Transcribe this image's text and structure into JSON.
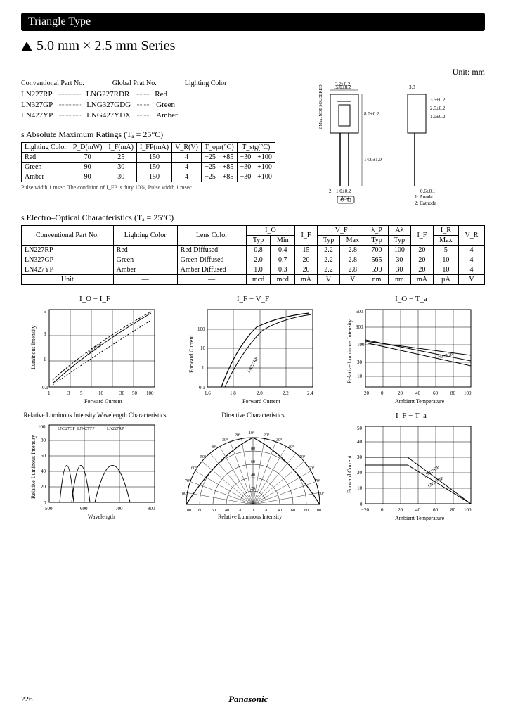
{
  "header": {
    "title": "Triangle Type"
  },
  "series_title": "5.0 mm × 2.5 mm Series",
  "unit_label": "Unit: mm",
  "part_headers": {
    "conv": "Conventional Part No.",
    "global": "Global Prat No.",
    "color": "Lighting Color"
  },
  "parts": [
    {
      "conv": "LN227RP",
      "global": "LNG227RDR",
      "color": "Red"
    },
    {
      "conv": "LN327GP",
      "global": "LNG327GDG",
      "color": "Green"
    },
    {
      "conv": "LN427YP",
      "global": "LNG427YDX",
      "color": "Amber"
    }
  ],
  "abs_max": {
    "title": "s  Absolute Maximum Ratings (Tₐ = 25°C)",
    "columns": [
      "Lighting Color",
      "P_D(mW)",
      "I_F(mA)",
      "I_FP(mA)",
      "V_R(V)",
      "T_opr(°C)",
      "T_stg(°C)"
    ],
    "subcols": [
      "",
      "",
      "",
      "",
      "",
      "",
      ""
    ],
    "rows": [
      [
        "Red",
        "70",
        "25",
        "150",
        "4",
        "−25",
        "+85",
        "−30",
        "+100"
      ],
      [
        "Green",
        "90",
        "30",
        "150",
        "4",
        "−25",
        "+85",
        "−30",
        "+100"
      ],
      [
        "Amber",
        "90",
        "30",
        "150",
        "4",
        "−25",
        "+85",
        "−30",
        "+100"
      ]
    ],
    "footnote": "Pulse width 1 msec. The condition of I_FP is duty 10%, Pulse width 1 msec"
  },
  "eo": {
    "title": "s  Electro–Optical Characteristics (Tₐ = 25°C)",
    "header1": [
      "Conventional Part No.",
      "Lighting Color",
      "Lens Color",
      "I_O",
      "",
      "V_F",
      "λ_P",
      "Aλ",
      "",
      "I_R",
      ""
    ],
    "header2": [
      "",
      "",
      "",
      "Typ",
      "Min",
      "I_F",
      "Typ",
      "Max",
      "Typ",
      "Typ",
      "I_F",
      "Max",
      "V_R"
    ],
    "rows": [
      [
        "LN227RP",
        "Red",
        "Red Diffused",
        "0.8",
        "0.4",
        "15",
        "2.2",
        "2.8",
        "700",
        "100",
        "20",
        "5",
        "4"
      ],
      [
        "LN327GP",
        "Green",
        "Green Diffused",
        "2.0",
        "0.7",
        "20",
        "2.2",
        "2.8",
        "565",
        "30",
        "20",
        "10",
        "4"
      ],
      [
        "LN427YP",
        "Amber",
        "Amber Diffused",
        "1.0",
        "0.3",
        "20",
        "2.2",
        "2.8",
        "590",
        "30",
        "20",
        "10",
        "4"
      ]
    ],
    "unit_row": [
      "Unit",
      "—",
      "—",
      "mcd",
      "mcd",
      "mA",
      "V",
      "V",
      "nm",
      "nm",
      "mA",
      "µA",
      "V"
    ]
  },
  "diagram_labels": {
    "note1": "1: Anode",
    "note2": "2: Cathode",
    "d1": "5.0±0.2",
    "d2": "3.2±0.2",
    "d3": "2.5±0.2",
    "d4": "1.0±0.2",
    "d5": "3.5±0.2",
    "d6": "8.0±0.2",
    "d7": "0.6±0.1",
    "d8": "14.0±1.0",
    "d9": "2.54",
    "d10": "2",
    "d11": "1.0±0.2",
    "d12": "3.3",
    "solder": "2 Max. NOT SOLDERED"
  },
  "charts": {
    "c1": {
      "title": "I_O − I_F",
      "xlabel": "Forward Current",
      "ylabel": "Luminous Intensity",
      "xticks": [
        "1",
        "3",
        "5",
        "10",
        "30",
        "50",
        "100"
      ],
      "yticks": [
        "0.1",
        "1",
        "3",
        "5"
      ],
      "series": [
        "LN227RP",
        "LN327GP",
        "LN427YP"
      ]
    },
    "c2": {
      "title": "I_F − V_F",
      "xlabel": "Forward Current",
      "ylabel": "Forward Current",
      "xticks": [
        "1.6",
        "1.8",
        "2.0",
        "2.2",
        "2.4"
      ],
      "yticks": [
        "0.1",
        "1",
        "10",
        "100"
      ],
      "series": [
        "LN227RP",
        "LN327GP",
        "LN427YP"
      ]
    },
    "c3": {
      "title": "I_O − T_a",
      "xlabel": "Ambient Temperature",
      "ylabel": "Relative Luminous Intensity",
      "xticks": [
        "−20",
        "0",
        "20",
        "40",
        "60",
        "80",
        "100"
      ],
      "yticks": [
        "10",
        "30",
        "50",
        "100",
        "300",
        "500"
      ],
      "series": [
        "LN227RP",
        "LN327GP",
        "LN427YP"
      ]
    },
    "c4": {
      "title": "Relative Luminous Intensity Wavelength Characteristics",
      "xlabel": "Wavelength",
      "ylabel": "Relative Luminous Intensity",
      "xticks": [
        "500",
        "600",
        "700",
        "800"
      ],
      "yticks": [
        "0",
        "20",
        "40",
        "60",
        "80",
        "100"
      ],
      "series": [
        "LN327GP",
        "LN427YP",
        "LN227RP"
      ]
    },
    "c5": {
      "title": "Directive Characteristics",
      "xlabel": "Relative Luminous Intensity",
      "angles": [
        "10°",
        "20°",
        "30°",
        "40°",
        "50°",
        "60°",
        "70°",
        "80°"
      ],
      "radii": [
        "20",
        "40",
        "60",
        "80",
        "100"
      ]
    },
    "c6": {
      "title": "I_F − T_a",
      "xlabel": "Ambient Temperature",
      "ylabel": "Forward Current",
      "xticks": [
        "−20",
        "0",
        "20",
        "40",
        "60",
        "80",
        "100"
      ],
      "yticks": [
        "0",
        "10",
        "20",
        "30",
        "40",
        "50"
      ],
      "series": [
        "LN227RP",
        "LN327GP",
        "LN427YP"
      ]
    }
  },
  "footer": {
    "page": "226",
    "brand": "Panasonic"
  },
  "colors": {
    "line": "#000000",
    "bg": "#ffffff",
    "grid": "#000000"
  }
}
